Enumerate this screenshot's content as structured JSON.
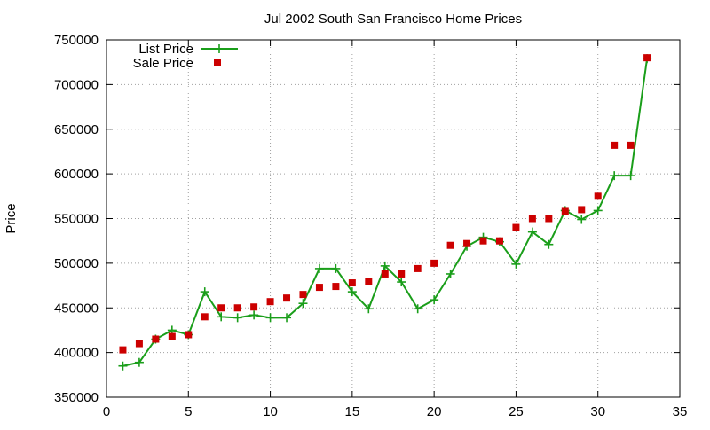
{
  "chart_data": {
    "type": "line",
    "title": "Jul 2002 South San Francisco Home Prices",
    "xlabel": "",
    "ylabel": "Price",
    "xlim": [
      0,
      35
    ],
    "ylim": [
      350000,
      750000
    ],
    "xticks": [
      0,
      5,
      10,
      15,
      20,
      25,
      30,
      35
    ],
    "yticks": [
      350000,
      400000,
      450000,
      500000,
      550000,
      600000,
      650000,
      700000,
      750000
    ],
    "grid": true,
    "legend_position": "top-left",
    "series": [
      {
        "name": "List Price",
        "style": "line-with-plus-markers",
        "color": "#1a9e1a",
        "x": [
          1,
          2,
          3,
          4,
          5,
          6,
          7,
          8,
          9,
          10,
          11,
          12,
          13,
          14,
          15,
          16,
          17,
          18,
          19,
          20,
          21,
          22,
          23,
          24,
          25,
          26,
          27,
          28,
          29,
          30,
          31,
          32,
          33
        ],
        "values": [
          385000,
          389000,
          415000,
          425000,
          420000,
          468000,
          440000,
          439000,
          442000,
          439000,
          439000,
          455000,
          494000,
          494000,
          468000,
          449000,
          497000,
          479000,
          449000,
          459000,
          488000,
          519000,
          529000,
          524000,
          499000,
          535000,
          521000,
          559000,
          549000,
          559000,
          598000,
          598000,
          729000
        ]
      },
      {
        "name": "Sale Price",
        "style": "square-markers",
        "color": "#cc0000",
        "x": [
          1,
          2,
          3,
          4,
          5,
          6,
          7,
          8,
          9,
          10,
          11,
          12,
          13,
          14,
          15,
          16,
          17,
          18,
          19,
          20,
          21,
          22,
          23,
          24,
          25,
          26,
          27,
          28,
          29,
          30,
          31,
          32,
          33
        ],
        "values": [
          403000,
          410000,
          415000,
          418000,
          420000,
          440000,
          450000,
          450000,
          451000,
          457000,
          461000,
          465000,
          473000,
          474000,
          478000,
          480000,
          488000,
          488000,
          494000,
          500000,
          520000,
          522000,
          525000,
          525000,
          540000,
          550000,
          550000,
          558000,
          560000,
          575000,
          632000,
          632000,
          730000
        ]
      }
    ]
  }
}
